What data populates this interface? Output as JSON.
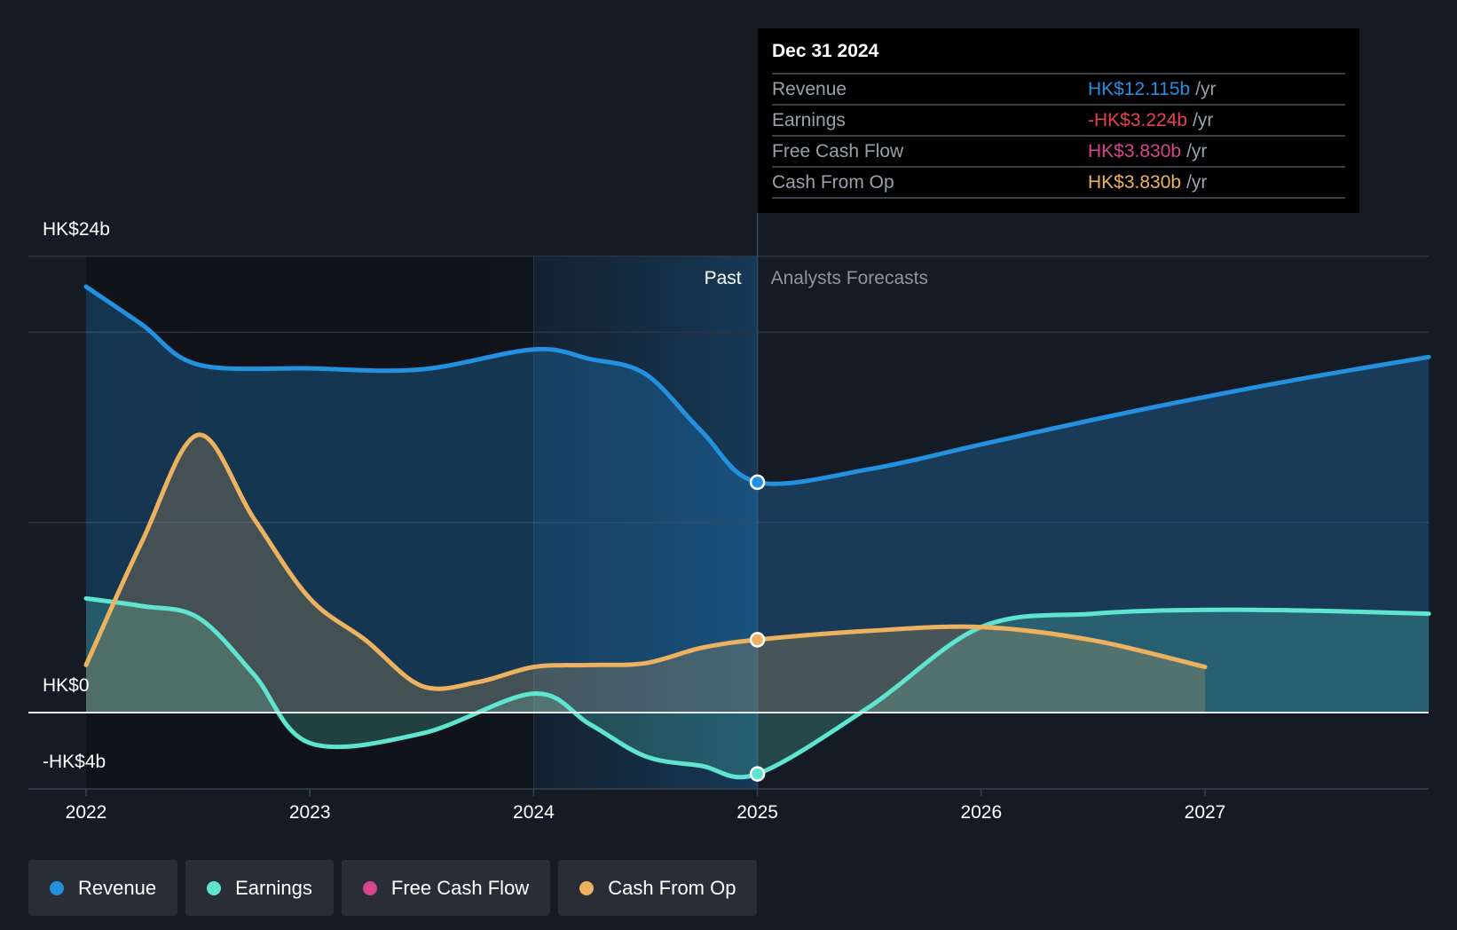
{
  "chart_data": {
    "type": "area",
    "y_axis": {
      "min": -4.5,
      "max": 24,
      "tick_labels": [
        "HK$24b",
        "HK$0",
        "-HK$4b"
      ],
      "tick_values": [
        24,
        0,
        -4
      ]
    },
    "x_axis": {
      "min": 2021.95,
      "max": 2028.0,
      "tick_labels": [
        "2022",
        "2023",
        "2024",
        "2025",
        "2026",
        "2027"
      ],
      "tick_values": [
        2022,
        2023,
        2024,
        2025,
        2026,
        2027
      ]
    },
    "past_label": "Past",
    "forecast_label": "Analysts Forecasts",
    "divider_x": 2025,
    "highlight_band": [
      2024,
      2025
    ],
    "series": [
      {
        "name": "Revenue",
        "color": "#2390e0",
        "points": [
          [
            2022,
            22.4
          ],
          [
            2022.25,
            20.4
          ],
          [
            2022.5,
            18.3
          ],
          [
            2023,
            18.1
          ],
          [
            2023.5,
            18.05
          ],
          [
            2024,
            19.1
          ],
          [
            2024.25,
            18.6
          ],
          [
            2024.5,
            17.8
          ],
          [
            2024.75,
            14.8
          ],
          [
            2025,
            12.115
          ],
          [
            2025.5,
            12.8
          ],
          [
            2026,
            14.1
          ],
          [
            2026.5,
            15.4
          ],
          [
            2027,
            16.6
          ],
          [
            2027.5,
            17.7
          ],
          [
            2028,
            18.7
          ]
        ]
      },
      {
        "name": "Earnings",
        "color": "#5ee4cf",
        "points": [
          [
            2022,
            6.0
          ],
          [
            2022.25,
            5.6
          ],
          [
            2022.5,
            5.0
          ],
          [
            2022.75,
            2.0
          ],
          [
            2023,
            -1.6
          ],
          [
            2023.5,
            -1.1
          ],
          [
            2024,
            1.0
          ],
          [
            2024.25,
            -0.6
          ],
          [
            2024.5,
            -2.3
          ],
          [
            2024.75,
            -2.8
          ],
          [
            2025,
            -3.224
          ],
          [
            2025.5,
            0.3
          ],
          [
            2026,
            4.5
          ],
          [
            2026.5,
            5.2
          ],
          [
            2027,
            5.4
          ],
          [
            2027.5,
            5.35
          ],
          [
            2028,
            5.2
          ]
        ]
      },
      {
        "name": "Free Cash Flow",
        "color": "#d6458e",
        "points": [
          [
            2022,
            2.5
          ],
          [
            2022.25,
            9.0
          ],
          [
            2022.5,
            14.6
          ],
          [
            2022.75,
            10.2
          ],
          [
            2023,
            6.0
          ],
          [
            2023.25,
            3.8
          ],
          [
            2023.5,
            1.4
          ],
          [
            2023.75,
            1.6
          ],
          [
            2024,
            2.4
          ],
          [
            2024.25,
            2.5
          ],
          [
            2024.5,
            2.6
          ],
          [
            2024.75,
            3.4
          ],
          [
            2025,
            3.83
          ]
        ]
      },
      {
        "name": "Cash From Op",
        "color": "#edb25f",
        "points": [
          [
            2022,
            2.5
          ],
          [
            2022.25,
            9.0
          ],
          [
            2022.5,
            14.6
          ],
          [
            2022.75,
            10.2
          ],
          [
            2023,
            6.0
          ],
          [
            2023.25,
            3.8
          ],
          [
            2023.5,
            1.4
          ],
          [
            2023.75,
            1.6
          ],
          [
            2024,
            2.4
          ],
          [
            2024.25,
            2.5
          ],
          [
            2024.5,
            2.6
          ],
          [
            2024.75,
            3.4
          ],
          [
            2025,
            3.83
          ],
          [
            2025.5,
            4.3
          ],
          [
            2026,
            4.5
          ],
          [
            2026.5,
            3.8
          ],
          [
            2027,
            2.4
          ]
        ]
      }
    ],
    "highlight_points": [
      {
        "series": "Revenue",
        "x": 2025,
        "y": 12.115
      },
      {
        "series": "Cash From Op",
        "x": 2025,
        "y": 3.83
      },
      {
        "series": "Earnings",
        "x": 2025,
        "y": -3.224
      }
    ]
  },
  "tooltip": {
    "date": "Dec 31 2024",
    "unit": "/yr",
    "rows": [
      {
        "label": "Revenue",
        "value": "HK$12.115b",
        "color": "#2390e0"
      },
      {
        "label": "Earnings",
        "value": "-HK$3.224b",
        "color": "#e8414b"
      },
      {
        "label": "Free Cash Flow",
        "value": "HK$3.830b",
        "color": "#d6458e"
      },
      {
        "label": "Cash From Op",
        "value": "HK$3.830b",
        "color": "#edb25f"
      }
    ]
  },
  "legend": [
    {
      "label": "Revenue",
      "color": "#2390e0"
    },
    {
      "label": "Earnings",
      "color": "#5ee4cf"
    },
    {
      "label": "Free Cash Flow",
      "color": "#d6458e"
    },
    {
      "label": "Cash From Op",
      "color": "#edb25f"
    }
  ]
}
